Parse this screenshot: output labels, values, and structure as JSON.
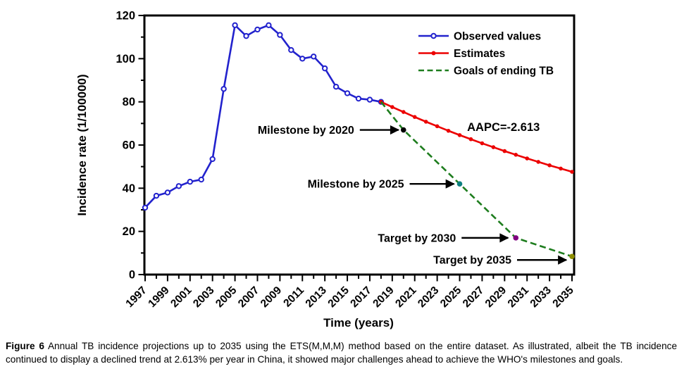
{
  "figure": {
    "caption_label": "Figure 6",
    "caption_text": "Annual TB incidence projections up to 2035 using the ETS(M,M,M) method based on the entire dataset. As illustrated, albeit the TB incidence continued to display a declined trend at 2.613% per year in China, it showed major challenges ahead to achieve the WHO's milestones and goals."
  },
  "chart_data": {
    "type": "line",
    "title": "",
    "xlabel": "Time (years)",
    "ylabel": "Incidence rate (1/100000)",
    "xlim": [
      1996.9,
      2035.2
    ],
    "ylim": [
      0,
      120
    ],
    "grid": false,
    "legend_position": "top-right",
    "x_tick_labels": [
      "1997",
      "1999",
      "2001",
      "2003",
      "2005",
      "2007",
      "2009",
      "2011",
      "2013",
      "2015",
      "2017",
      "2019",
      "2021",
      "2023",
      "2025",
      "2027",
      "2029",
      "2031",
      "2033",
      "2035"
    ],
    "y_tick_labels": [
      "0",
      "20",
      "40",
      "60",
      "80",
      "100",
      "120"
    ],
    "series": [
      {
        "name": "Observed values",
        "color": "#2222cd",
        "style": "solid",
        "marker": "open-circle",
        "x": [
          1997,
          1998,
          1999,
          2000,
          2001,
          2002,
          2003,
          2004,
          2005,
          2006,
          2007,
          2008,
          2009,
          2010,
          2011,
          2012,
          2013,
          2014,
          2015,
          2016,
          2017,
          2018
        ],
        "values": [
          31,
          36.5,
          38,
          41,
          43,
          44,
          53.5,
          86,
          115.5,
          110.5,
          113.5,
          115.5,
          111,
          104,
          100,
          101,
          95.5,
          87,
          84,
          81.5,
          81,
          80
        ]
      },
      {
        "name": "Estimates",
        "color": "#ec0000",
        "style": "solid",
        "marker": "filled-circle",
        "x": [
          2018,
          2019,
          2020,
          2021,
          2022,
          2023,
          2024,
          2025,
          2026,
          2027,
          2028,
          2029,
          2030,
          2031,
          2032,
          2033,
          2034,
          2035
        ],
        "values": [
          80,
          77.6,
          75.3,
          73,
          70.8,
          68.7,
          66.6,
          64.6,
          62.7,
          60.8,
          59,
          57.2,
          55.5,
          53.8,
          52.2,
          50.6,
          49.1,
          47.6
        ]
      },
      {
        "name": "Goals of ending TB",
        "color": "#1e7d1e",
        "style": "dashed",
        "marker": "none",
        "x": [
          2018,
          2020,
          2025,
          2030,
          2035
        ],
        "values": [
          80,
          67,
          42,
          17,
          8.4
        ]
      }
    ],
    "goal_markers": [
      {
        "label": "Milestone by 2020",
        "x": 2020,
        "value": 67,
        "color": "#000000"
      },
      {
        "label": "Milestone by 2025",
        "x": 2025,
        "value": 42,
        "color": "#0d8080"
      },
      {
        "label": "Target by 2030",
        "x": 2030,
        "value": 17,
        "color": "#800080"
      },
      {
        "label": "Target by 2035",
        "x": 2035,
        "value": 8.4,
        "color": "#8f8f00"
      }
    ],
    "annotations": [
      {
        "text": "AAPC=-2.613",
        "x": 2028.9,
        "value": 68.2
      }
    ]
  }
}
